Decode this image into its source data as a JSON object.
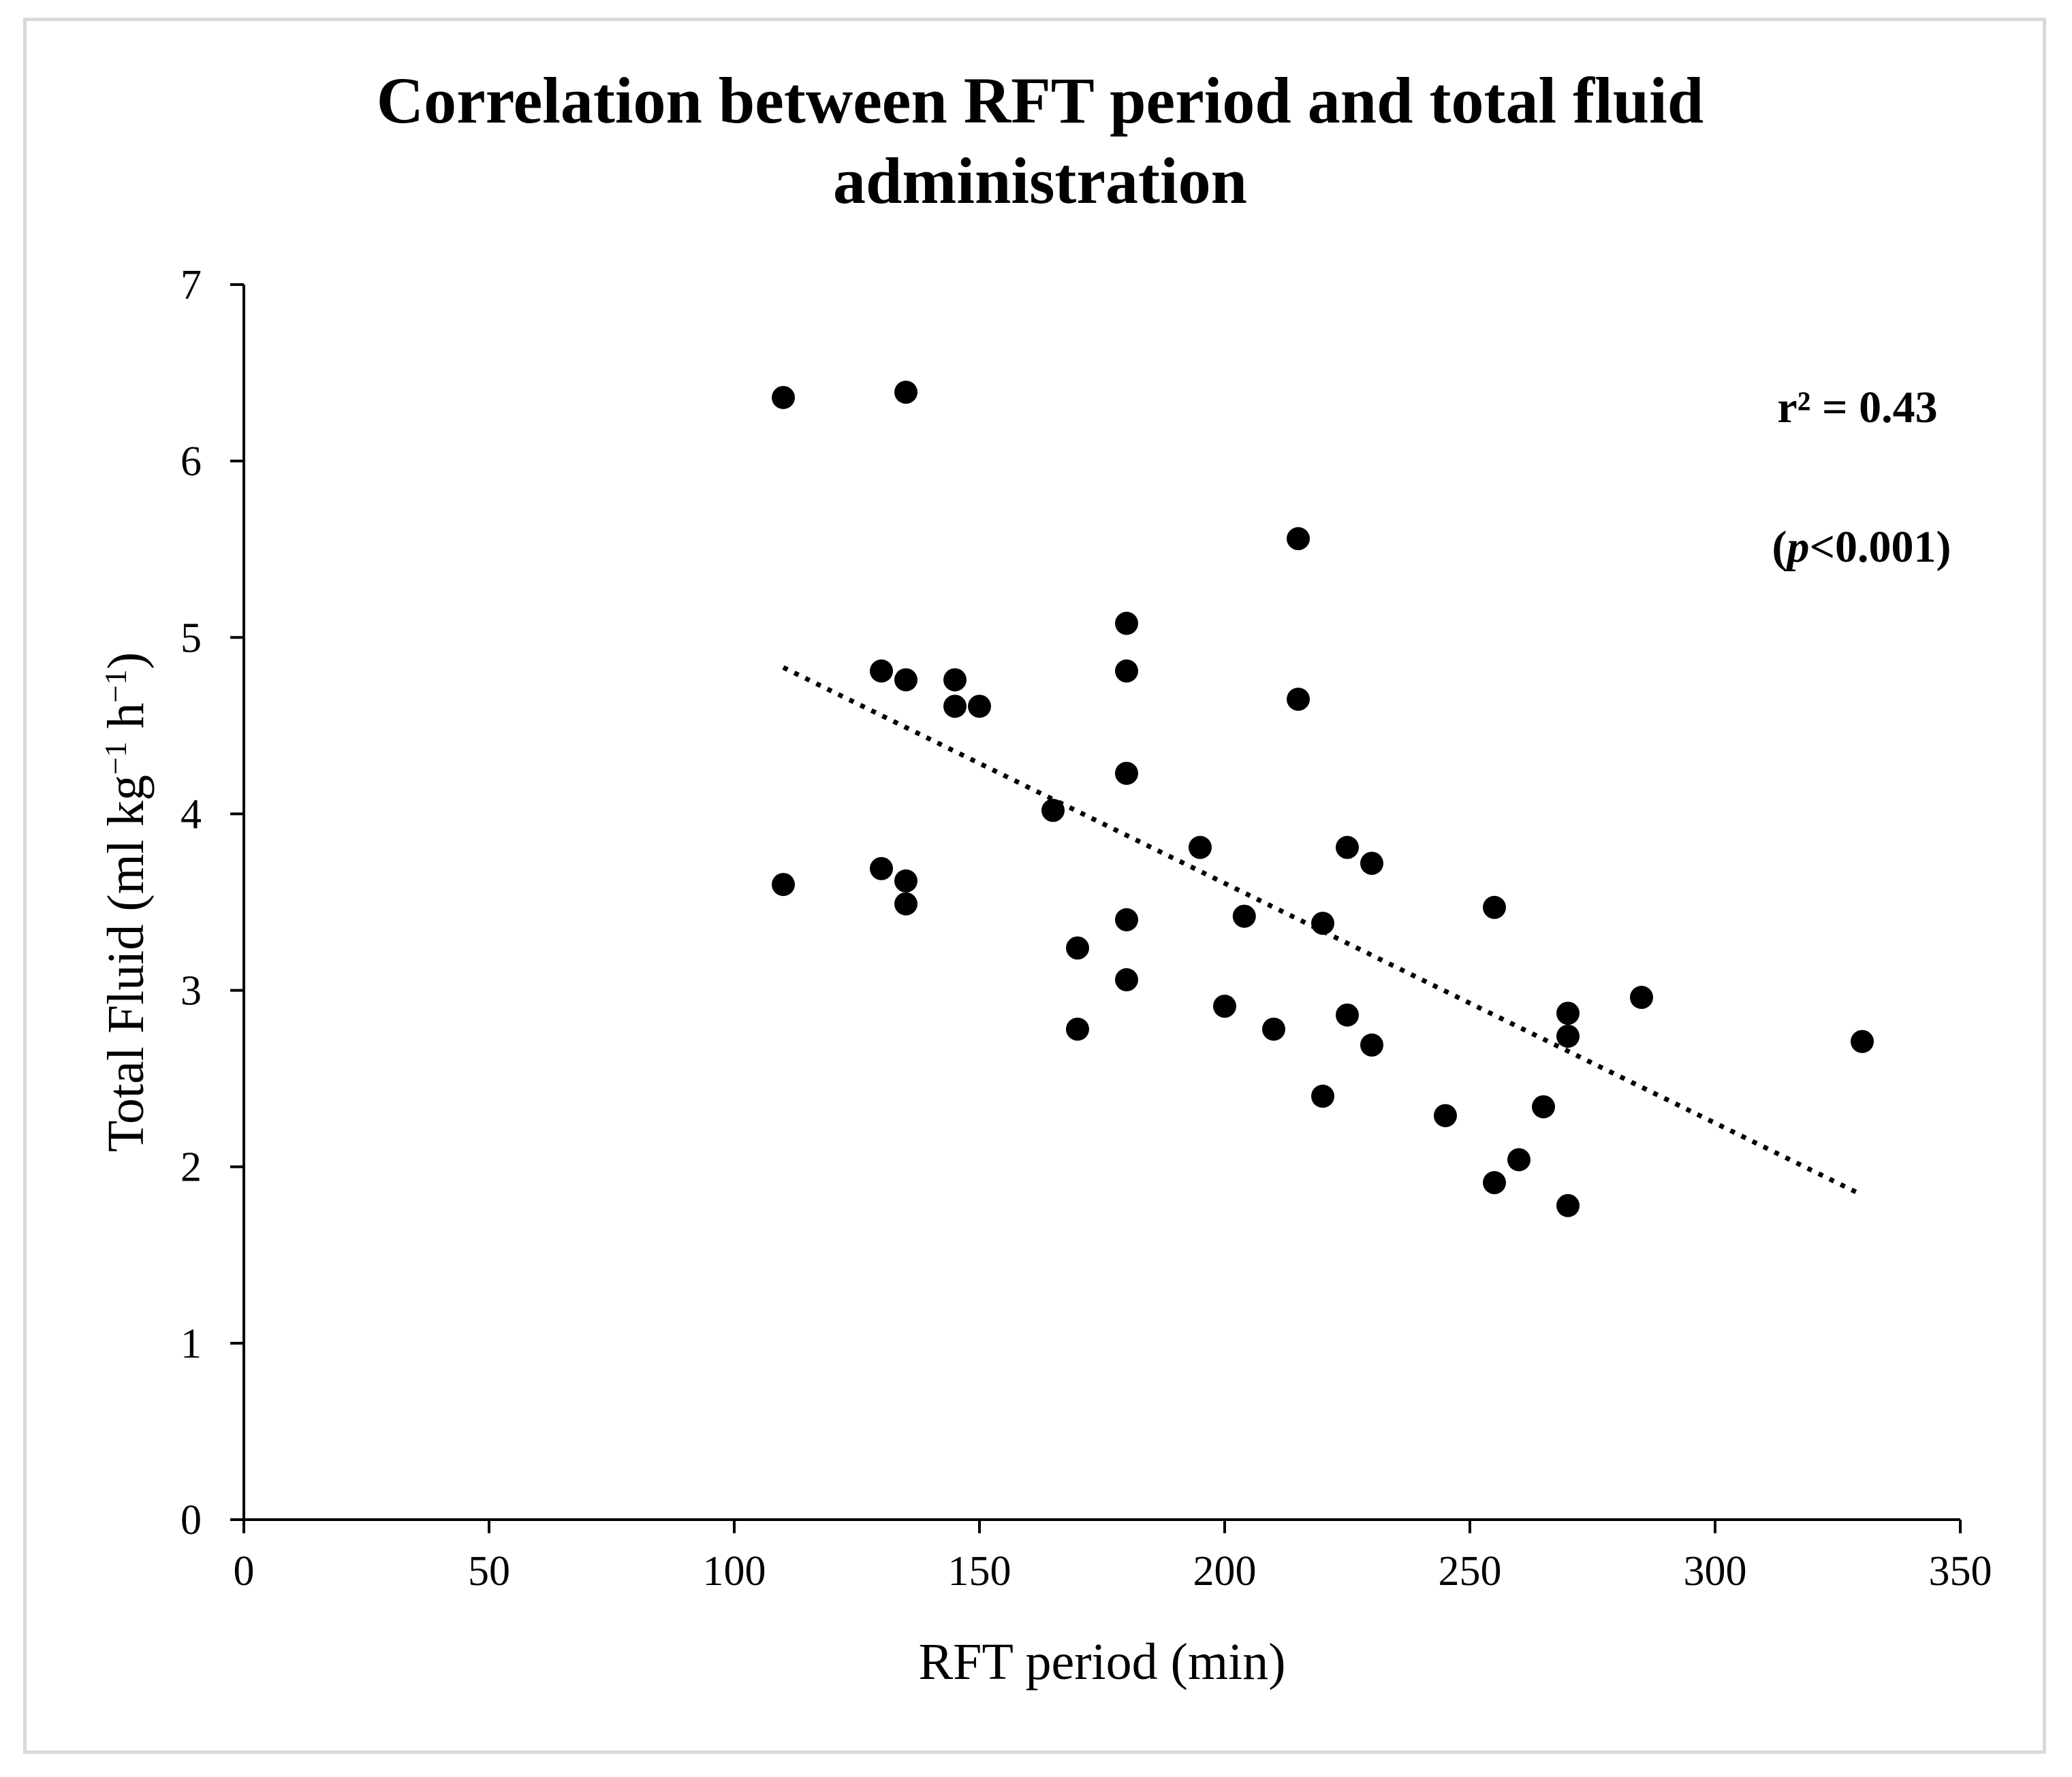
{
  "chart_data": {
    "type": "scatter",
    "title_line1": "Correlation between RFT period and total fluid",
    "title_line2": "administration",
    "xlabel": "RFT period (min)",
    "ylabel": {
      "base": "Total Fluid (ml kg",
      "exp1": "−1",
      "mid": " h",
      "exp2": "−1",
      "end": ")"
    },
    "xlim": [
      0,
      350
    ],
    "ylim": [
      0,
      7
    ],
    "xticks": [
      0,
      50,
      100,
      150,
      200,
      250,
      300,
      350
    ],
    "yticks": [
      0,
      1,
      2,
      3,
      4,
      5,
      6,
      7
    ],
    "annotation": {
      "r2": "r² = 0.43",
      "p_open": "(",
      "p_italic": "p",
      "p_rest": "<0.001)"
    },
    "trendline": {
      "style": "dotted",
      "x": [
        110,
        330
      ],
      "y": [
        4.83,
        1.84
      ]
    },
    "points": {
      "x": [
        110,
        135,
        215,
        180,
        130,
        135,
        145,
        145,
        150,
        215,
        180,
        165,
        180,
        195,
        225,
        230,
        110,
        130,
        135,
        135,
        255,
        170,
        180,
        204,
        220,
        180,
        285,
        200,
        225,
        270,
        170,
        210,
        270,
        230,
        330,
        220,
        245,
        265,
        260,
        255,
        270
      ],
      "y": [
        6.36,
        6.39,
        5.56,
        5.08,
        4.81,
        4.76,
        4.76,
        4.61,
        4.61,
        4.65,
        4.81,
        4.02,
        4.23,
        3.81,
        3.81,
        3.72,
        3.6,
        3.69,
        3.62,
        3.49,
        3.47,
        3.24,
        3.4,
        3.42,
        3.38,
        3.06,
        2.96,
        2.91,
        2.86,
        2.87,
        2.78,
        2.78,
        2.74,
        2.69,
        2.71,
        2.4,
        2.29,
        2.34,
        2.04,
        1.91,
        1.78
      ]
    }
  }
}
